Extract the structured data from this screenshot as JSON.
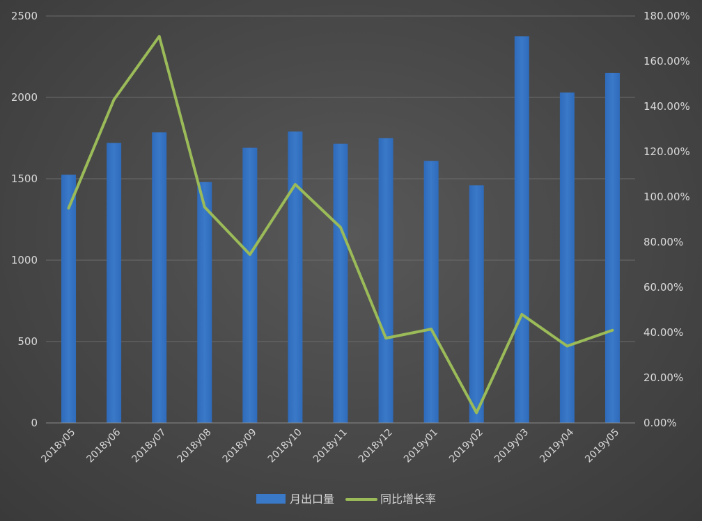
{
  "chart_data": {
    "type": "bar",
    "categories": [
      "2018y05",
      "2018y06",
      "2018y07",
      "2018y08",
      "2018y09",
      "2018y10",
      "2018y11",
      "2018y12",
      "2019y01",
      "2019y02",
      "2019y03",
      "2019y04",
      "2019y05"
    ],
    "series": [
      {
        "name": "月出口量",
        "type": "bar",
        "axis": "left",
        "color": "#3a78c8",
        "values": [
          1525,
          1720,
          1785,
          1480,
          1690,
          1790,
          1715,
          1750,
          1610,
          1460,
          2375,
          2030,
          2150
        ]
      },
      {
        "name": "同比增长率",
        "type": "line",
        "axis": "right",
        "color": "#9bbb59",
        "values": [
          95.0,
          143.0,
          171.0,
          95.5,
          74.5,
          105.5,
          86.5,
          37.5,
          41.5,
          4.5,
          48.0,
          34.0,
          41.0
        ]
      }
    ],
    "y_left": {
      "min": 0,
      "max": 2500,
      "ticks": [
        0,
        500,
        1000,
        1500,
        2000,
        2500
      ],
      "tick_labels": [
        "0",
        "500",
        "1000",
        "1500",
        "2000",
        "2500"
      ]
    },
    "y_right": {
      "min": 0,
      "max": 180,
      "ticks": [
        0,
        20,
        40,
        60,
        80,
        100,
        120,
        140,
        160,
        180
      ],
      "tick_labels": [
        "0.00%",
        "20.00%",
        "40.00%",
        "60.00%",
        "80.00%",
        "100.00%",
        "120.00%",
        "140.00%",
        "160.00%",
        "180.00%"
      ]
    },
    "title": "",
    "xlabel": "",
    "ylabel": "",
    "grid": true,
    "legend": "bottom",
    "colors": {
      "grid": "#6b6b6b",
      "axis_text": "#d9d9d9"
    }
  }
}
